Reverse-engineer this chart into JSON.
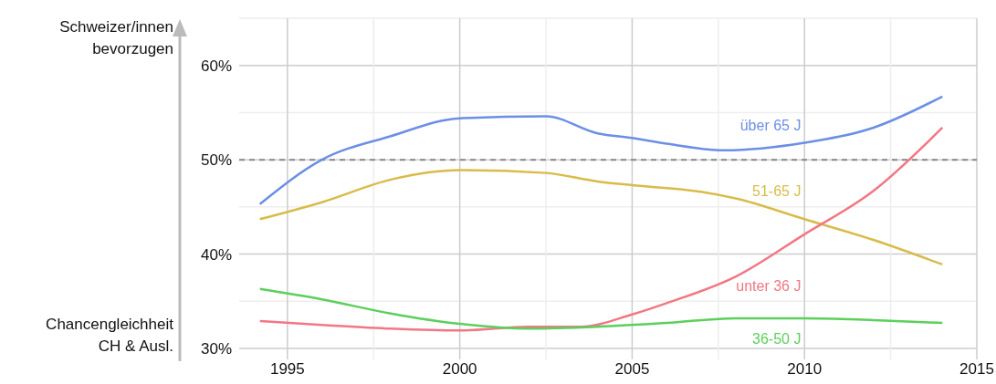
{
  "chart_data": {
    "type": "line",
    "ylabel": "Schweizer/innen bevorzugen",
    "annotations": [
      "Chancengleichheit CH & Ausl."
    ],
    "xlim": [
      1993.6,
      2015
    ],
    "xticks": [
      1995,
      {
        "value": 1997.5,
        "label": null
      },
      2000,
      {
        "value": 2002.5,
        "label": null
      },
      2005,
      {
        "value": 2007.5,
        "label": null
      },
      2010,
      {
        "value": 2012.5,
        "label": null
      },
      2015
    ],
    "ylim": [
      30,
      65
    ],
    "yticks": [
      {
        "value": 30,
        "label": "30%"
      },
      {
        "value": 35,
        "label": null
      },
      {
        "value": 40,
        "label": "40%"
      },
      {
        "value": 45,
        "label": null
      },
      {
        "value": 50,
        "label": "50%"
      },
      {
        "value": 55,
        "label": null
      },
      {
        "value": 60,
        "label": "60%"
      },
      {
        "value": 65,
        "label": null
      }
    ],
    "grid": true,
    "line_style": "solid",
    "marker": "none",
    "ref_lines": [
      {
        "axis": "y",
        "value": 50,
        "color": "#888888",
        "line_style": "dashed"
      }
    ],
    "series": [
      {
        "name": "über 65 J",
        "color": "#6b8fe6",
        "x": [
          1994.2,
          1996,
          1998,
          2000,
          2002.5,
          2004,
          2005,
          2006,
          2007.7,
          2010,
          2012,
          2014
        ],
        "values": [
          45.3,
          50,
          52.5,
          54.4,
          54.6,
          52.8,
          52.3,
          51.7,
          51,
          51.8,
          53.4,
          56.7
        ]
      },
      {
        "name": "51-65 J",
        "color": "#d9bb4a",
        "x": [
          1994.2,
          1996,
          1998,
          2000,
          2002.5,
          2004,
          2005,
          2007,
          2008,
          2010,
          2012,
          2014
        ],
        "values": [
          43.7,
          45.5,
          47.9,
          48.9,
          48.6,
          47.7,
          47.3,
          46.6,
          45.9,
          43.7,
          41.5,
          38.9
        ]
      },
      {
        "name": "unter 36 J",
        "color": "#f27784",
        "x": [
          1994.2,
          1996,
          1998,
          2000,
          2002,
          2003.5,
          2005,
          2006,
          2008,
          2010,
          2012,
          2014
        ],
        "values": [
          32.9,
          32.5,
          32.1,
          31.9,
          32.3,
          32.3,
          33.6,
          34.8,
          37.6,
          42.1,
          46.7,
          53.4
        ]
      },
      {
        "name": "36-50 J",
        "color": "#5ccf5c",
        "x": [
          1994.2,
          1996,
          1998,
          2000,
          2002,
          2004,
          2006,
          2008,
          2010,
          2012,
          2014
        ],
        "values": [
          36.3,
          35.2,
          33.7,
          32.6,
          32.1,
          32.3,
          32.7,
          33.2,
          33.2,
          33,
          32.7
        ]
      }
    ]
  }
}
